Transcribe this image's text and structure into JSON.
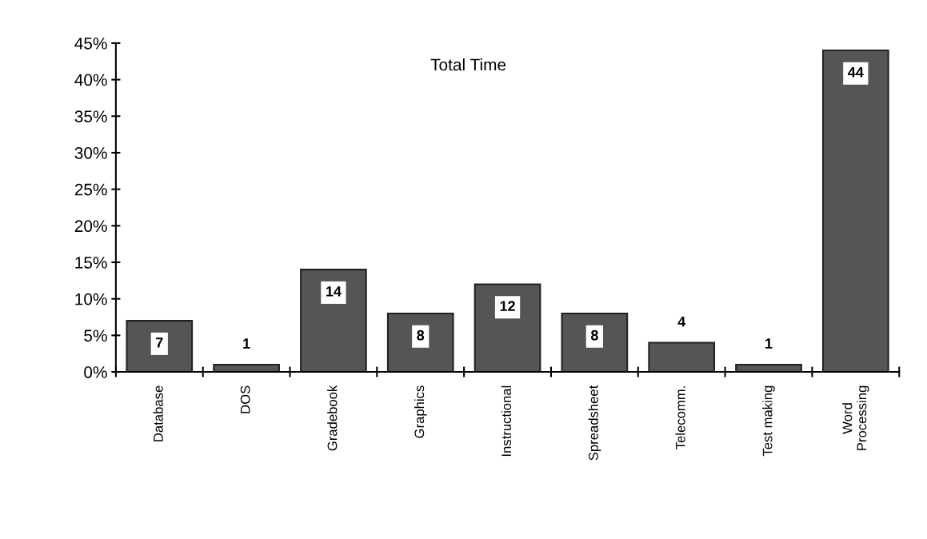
{
  "chart_data": {
    "type": "bar",
    "title": "Total Time",
    "categories": [
      "Database",
      "DOS",
      "Gradebook",
      "Graphics",
      "Instructional",
      "Spreadsheet",
      "Telecomm.",
      "Test making",
      "Word\nProcessing"
    ],
    "values": [
      7,
      1,
      14,
      8,
      12,
      8,
      4,
      1,
      44
    ],
    "color": "#555555",
    "ylim": [
      0,
      45
    ],
    "yticks": [
      {
        "value": 0,
        "label": "0%"
      },
      {
        "value": 5,
        "label": "5%"
      },
      {
        "value": 10,
        "label": "10%"
      },
      {
        "value": 15,
        "label": "15%"
      },
      {
        "value": 20,
        "label": "20%"
      },
      {
        "value": 25,
        "label": "25%"
      },
      {
        "value": 30,
        "label": "30%"
      },
      {
        "value": 35,
        "label": "35%"
      },
      {
        "value": 40,
        "label": "40%"
      },
      {
        "value": 45,
        "label": "45%"
      }
    ],
    "data_labels": true,
    "grid": false,
    "legend": false
  }
}
